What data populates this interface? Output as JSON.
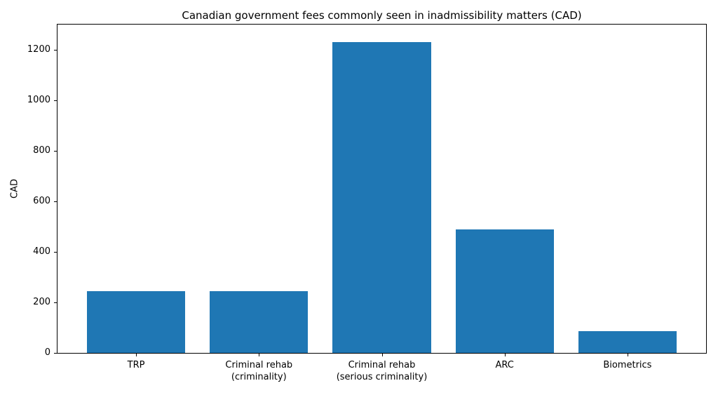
{
  "figure": {
    "background": "#ffffff"
  },
  "chart_data": {
    "type": "bar",
    "title": "Canadian government fees commonly seen in inadmissibility matters (CAD)",
    "xlabel": "",
    "ylabel": "CAD",
    "categories": [
      "TRP",
      "Criminal rehab\n(criminality)",
      "Criminal rehab\n(serious criminality)",
      "ARC",
      "Biometrics"
    ],
    "values": [
      245,
      245,
      1230,
      490,
      85
    ],
    "ylim": [
      0,
      1300
    ],
    "yticks": [
      0,
      200,
      400,
      600,
      800,
      1000,
      1200
    ],
    "grid": false,
    "legend": "none",
    "bar_width_fraction": 0.8,
    "colors": {
      "bar": "#1f77b4",
      "text": "#000000",
      "spine": "#000000",
      "background": "#ffffff"
    }
  }
}
